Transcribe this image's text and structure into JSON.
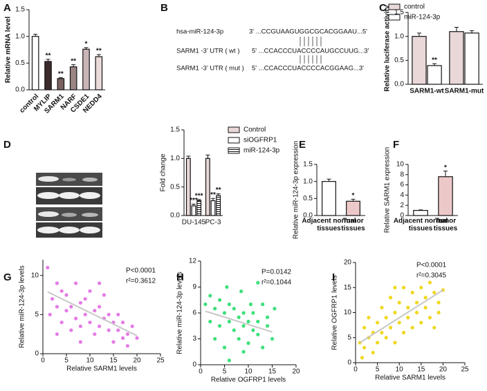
{
  "chart_data": [
    {
      "type": "bar",
      "panel_label": "A",
      "ylabel": "Relative mRNA level",
      "categories": [
        "control",
        "MYLIP",
        "SARM1",
        "NARF",
        "CSDE1",
        "NEDD4"
      ],
      "values": [
        1.0,
        0.53,
        0.21,
        0.43,
        0.76,
        0.62
      ],
      "errors": [
        0.04,
        0.04,
        0.02,
        0.04,
        0.03,
        0.04
      ],
      "annotations": [
        null,
        "**",
        "**",
        "**",
        "*",
        "**"
      ],
      "colors": [
        "#ffffff",
        "#3d2b2b",
        "#7a6262",
        "#9c8585",
        "#c9b6b6",
        "#eadada"
      ],
      "ylim": [
        0,
        1.5
      ],
      "yticks": [
        {
          "value": 0,
          "label": "0.0"
        },
        {
          "value": 0.5,
          "label": "0.5"
        },
        {
          "value": 1,
          "label": "1.0"
        },
        {
          "value": 1.5,
          "label": "1.5"
        }
      ]
    },
    {
      "type": "bar",
      "panel_label": "C",
      "ylabel": "Relative luciferase activity",
      "categories": [
        "SARM1-wt",
        "SARM1-mut"
      ],
      "series": [
        {
          "name": "control",
          "color": "#ead8d8",
          "values": [
            1.0,
            1.1
          ],
          "errors": [
            0.07,
            0.09
          ],
          "annotations": [
            null,
            null
          ]
        },
        {
          "name": "miR-124-3p",
          "color": "#ffffff",
          "values": [
            0.39,
            1.07
          ],
          "errors": [
            0.04,
            0.05
          ],
          "annotations": [
            "**",
            null
          ]
        }
      ],
      "legend": "top-left",
      "ylim": [
        0,
        1.5
      ],
      "yticks": [
        {
          "value": 0,
          "label": "0.0"
        },
        {
          "value": 0.5,
          "label": "0.5"
        },
        {
          "value": 1,
          "label": "1.0"
        },
        {
          "value": 1.5,
          "label": "1.5"
        }
      ]
    },
    {
      "type": "bar",
      "panel_label": "D",
      "ylabel": "Fold change",
      "categories": [
        "DU-145",
        "PC-3"
      ],
      "series": [
        {
          "name": "Control",
          "color": "#ead8d8",
          "values": [
            1.0,
            1.0
          ],
          "errors": [
            0.04,
            0.06
          ],
          "annotations": [
            null,
            null
          ]
        },
        {
          "name": "siOGFRP1",
          "color": "#ffffff",
          "values": [
            0.17,
            0.26
          ],
          "errors": [
            0.03,
            0.04
          ],
          "annotations": [
            "***",
            "**"
          ]
        },
        {
          "name": "miR-124-3p",
          "color": "#ffffff",
          "pattern": "horizontal-lines",
          "values": [
            0.26,
            0.35
          ],
          "errors": [
            0.02,
            0.03
          ],
          "annotations": [
            "***",
            "**"
          ]
        }
      ],
      "legend": "right",
      "ylim": [
        0,
        1.5
      ],
      "yticks": [
        {
          "value": 0,
          "label": "0.0"
        },
        {
          "value": 0.5,
          "label": "0.5"
        },
        {
          "value": 1,
          "label": "1.0"
        },
        {
          "value": 1.5,
          "label": "1.5"
        }
      ]
    },
    {
      "type": "bar",
      "panel_label": "E",
      "ylabel": "Relative miR-124-3p expression",
      "categories": [
        [
          "Adjacent normal",
          "tissues"
        ],
        [
          "Tumor",
          "tissues"
        ]
      ],
      "values": [
        1.0,
        0.42
      ],
      "errors": [
        0.07,
        0.06
      ],
      "annotations": [
        null,
        "*"
      ],
      "colors": [
        "#ffffff",
        "#ecc8c8"
      ],
      "ylim": [
        0,
        1.5
      ],
      "yticks": [
        {
          "value": 0,
          "label": "0.0"
        },
        {
          "value": 0.5,
          "label": "0.5"
        },
        {
          "value": 1,
          "label": "1.0"
        },
        {
          "value": 1.5,
          "label": "1.5"
        }
      ]
    },
    {
      "type": "bar",
      "panel_label": "F",
      "ylabel": "Relative SARM1 expression",
      "categories": [
        [
          "Adjacent normal",
          "tissues"
        ],
        [
          "Tumor",
          "tissues"
        ]
      ],
      "values": [
        1.0,
        7.6
      ],
      "errors": [
        0.1,
        1.1
      ],
      "annotations": [
        null,
        "*"
      ],
      "colors": [
        "#ffffff",
        "#ecc8c8"
      ],
      "ylim": [
        0,
        10
      ],
      "yticks": [
        0,
        2,
        4,
        6,
        8,
        10
      ]
    },
    {
      "type": "scatter",
      "panel_label": "G",
      "xlabel": "Relative SARM1 levels",
      "ylabel": "Relative miR-124-3p levels",
      "color": "#e67ae6",
      "x": [
        1,
        2,
        1.5,
        3,
        3,
        4,
        4,
        5,
        5,
        6,
        6,
        7,
        7,
        8,
        8,
        9,
        9,
        10,
        10,
        11,
        11,
        12,
        12,
        13,
        13,
        14,
        14,
        15,
        15,
        16,
        16,
        17,
        17,
        18,
        18,
        19,
        20,
        3,
        8,
        12
      ],
      "y": [
        11,
        7,
        5,
        9,
        6,
        8,
        4,
        5.5,
        7.5,
        6,
        3,
        9,
        4.5,
        6.5,
        3.5,
        5,
        7,
        8,
        4,
        5.5,
        2.5,
        6,
        3.5,
        4.5,
        7.5,
        3,
        5,
        4,
        1.5,
        3,
        5,
        2,
        4,
        2.5,
        1,
        3.5,
        2,
        2.5,
        1.5,
        9
      ],
      "xlim": [
        0,
        25
      ],
      "xticks": [
        0,
        5,
        10,
        15,
        20,
        25
      ],
      "ylim": [
        0,
        12
      ],
      "yticks": [
        0,
        5,
        10
      ],
      "stats": [
        "P<0.0001",
        "r²=0.3612"
      ],
      "trend": {
        "x": [
          1,
          20
        ],
        "y": [
          7.9,
          2.3
        ],
        "color": "#c8c8c8"
      }
    },
    {
      "type": "scatter",
      "panel_label": "H",
      "xlabel": "Relative OGFRP1 levels",
      "ylabel": "Relative miR-124-3p levels",
      "color": "#3ee07a",
      "x": [
        1,
        2,
        2,
        3,
        3,
        4,
        4,
        5,
        5,
        5.5,
        6,
        6,
        7,
        7,
        8,
        8,
        8.5,
        9,
        9,
        10,
        10,
        10.5,
        11,
        11,
        12,
        12,
        13,
        13,
        14,
        14,
        15,
        15.5,
        6,
        9,
        12
      ],
      "y": [
        7,
        5,
        8,
        6.5,
        3,
        7.5,
        4.5,
        6,
        2,
        9,
        5,
        7,
        4,
        6.5,
        5.5,
        3,
        8.5,
        4.5,
        6,
        5,
        2.5,
        7,
        4,
        6,
        3.5,
        5,
        7,
        2,
        4.5,
        5.5,
        3,
        6.5,
        0.5,
        1.5,
        9.5
      ],
      "xlim": [
        0,
        20
      ],
      "xticks": [
        0,
        5,
        10,
        15,
        20
      ],
      "ylim": [
        0,
        12
      ],
      "yticks": [
        0,
        3,
        6,
        9,
        12
      ],
      "stats": [
        "P=0.0142",
        "r²=0.1044"
      ],
      "trend": {
        "x": [
          1,
          15
        ],
        "y": [
          6.2,
          3.8
        ],
        "color": "#c8c8c8"
      }
    },
    {
      "type": "scatter",
      "panel_label": "I",
      "xlabel": "Relative SARM1 levels",
      "ylabel": "Relative OGFRP1 levels",
      "color": "#f0d820",
      "x": [
        1,
        1.5,
        2,
        2,
        3,
        3,
        4,
        4,
        5,
        5,
        6,
        6,
        7,
        7,
        8,
        8,
        9,
        9,
        10,
        10,
        11,
        11,
        12,
        12,
        13,
        13,
        14,
        14,
        15,
        15,
        16,
        16,
        17,
        17,
        18,
        18,
        19,
        19,
        20,
        9
      ],
      "y": [
        4,
        1,
        7,
        3,
        5,
        9,
        2,
        6,
        8,
        4,
        11,
        6,
        5,
        9,
        13,
        7,
        10,
        4,
        12,
        8,
        15,
        6,
        11,
        9,
        14,
        7,
        12,
        10,
        15,
        8,
        13,
        11,
        16,
        9,
        14,
        7,
        12,
        10,
        14.5,
        15
      ],
      "xlim": [
        0,
        25
      ],
      "xticks": [
        0,
        5,
        10,
        15,
        20,
        25
      ],
      "ylim": [
        0,
        20
      ],
      "yticks": [
        0,
        5,
        10,
        15,
        20
      ],
      "stats": [
        "P<0.0001",
        "r²=0.3045"
      ],
      "trend": {
        "x": [
          1,
          20
        ],
        "y": [
          4,
          14.5
        ],
        "color": "#c8c8c8"
      }
    }
  ],
  "sequence_panel": {
    "panel_label": "B",
    "rows": [
      {
        "label": "hsa-miR-124-3p",
        "sequence": "3' ...CCGUAAGUGGCGCACGGAAU...5'"
      },
      {
        "label": "SARM1 -3’ UTR ( wt )",
        "sequence": "5' ...CCACCCUACCCCAUGCCUUG...3'"
      },
      {
        "label": "SARM1 -3’ UTR ( mut )",
        "sequence": "5' ...CCACCCUACCCCACGGAAG...3'"
      }
    ]
  }
}
